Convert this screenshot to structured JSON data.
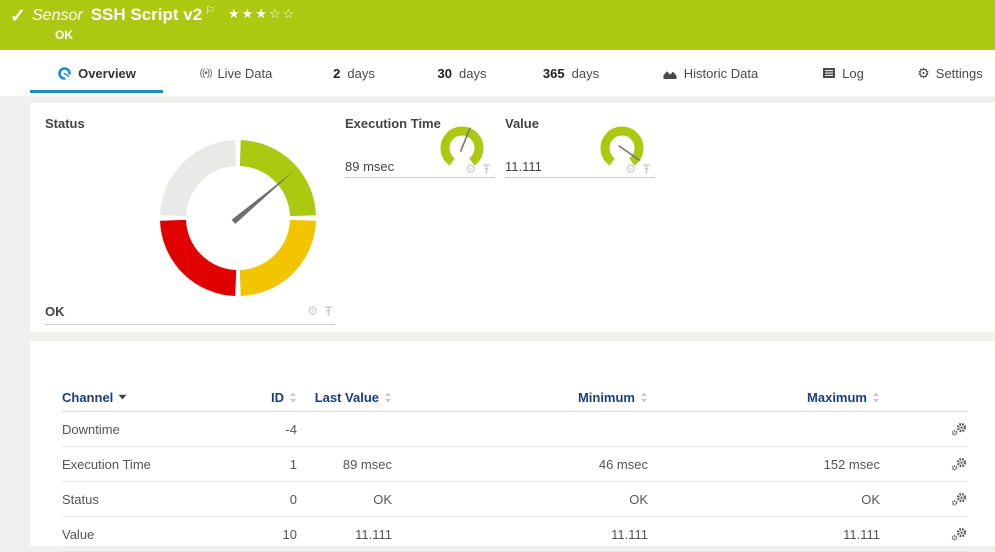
{
  "icons": {
    "check": "✓",
    "flag": "⚐",
    "gear": "⚙",
    "live": "((•))"
  },
  "titlebar": {
    "kind": "Sensor",
    "title": "SSH Script v2",
    "status": "OK",
    "stars": "★★★☆☆",
    "bar_color": "#acc811"
  },
  "tabs": {
    "overview": "Overview",
    "live_data": "Live Data",
    "days2_num": "2",
    "days2_label": "days",
    "days30_num": "30",
    "days30_label": "days",
    "days365_num": "365",
    "days365_label": "days",
    "historic": "Historic Data",
    "log": "Log",
    "settings": "Settings"
  },
  "status_panel": {
    "title": "Status",
    "value": "OK",
    "gauge": {
      "needle_angle_deg": -40,
      "ok_color": "#acc811",
      "warning_color": "#f2c500",
      "error_color": "#e10000",
      "unknown_color": "#e9e9e7",
      "needle_color": "#6e6e6e"
    }
  },
  "gauges": {
    "execution_time": {
      "title": "Execution Time",
      "value": "89 msec",
      "needle_angle_deg": -68,
      "arc_color": "#acc811"
    },
    "value": {
      "title": "Value",
      "value": "11.111",
      "needle_angle_deg": 35,
      "arc_color": "#acc811"
    }
  },
  "table": {
    "columns": {
      "channel": "Channel",
      "id": "ID",
      "last_value": "Last Value",
      "minimum": "Minimum",
      "maximum": "Maximum"
    },
    "rows": [
      {
        "channel": "Downtime",
        "id": "-4",
        "last_value": "",
        "minimum": "",
        "maximum": ""
      },
      {
        "channel": "Execution Time",
        "id": "1",
        "last_value": "89 msec",
        "minimum": "46 msec",
        "maximum": "152 msec"
      },
      {
        "channel": "Status",
        "id": "0",
        "last_value": "OK",
        "minimum": "OK",
        "maximum": "OK"
      },
      {
        "channel": "Value",
        "id": "10",
        "last_value": "11.111",
        "minimum": "11.111",
        "maximum": "11.111"
      }
    ]
  }
}
